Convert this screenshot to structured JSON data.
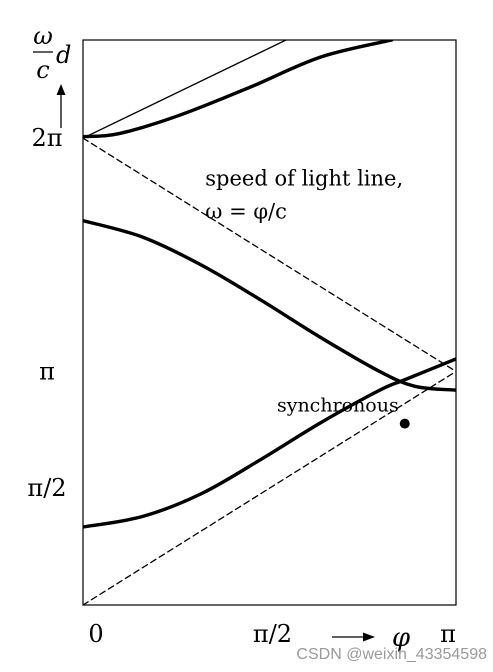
{
  "chart_data": {
    "type": "line",
    "x_range": [
      0,
      3.14159
    ],
    "y_range": [
      0,
      7.6
    ],
    "y_label": {
      "numerator": "ω",
      "denominator": "c",
      "suffix": "d"
    },
    "x_label": "φ",
    "x_ticks": [
      {
        "value": 0,
        "label": "0"
      },
      {
        "value": 1.5708,
        "label": "π/2"
      },
      {
        "value": 3.14159,
        "label": "π"
      }
    ],
    "y_ticks": [
      {
        "value": 1.5708,
        "label": "π/2"
      },
      {
        "value": 3.14159,
        "label": "π"
      },
      {
        "value": 6.2832,
        "label": "2π"
      }
    ],
    "series": [
      {
        "style": "thick",
        "x": [
          0,
          0.5,
          1.0,
          1.5,
          2.0,
          2.5,
          2.71,
          3.14159
        ],
        "y": [
          1.05,
          1.19,
          1.5,
          1.96,
          2.45,
          2.89,
          3.03,
          3.31
        ]
      },
      {
        "style": "thick",
        "x": [
          0,
          0.5,
          1.0,
          1.5,
          2.0,
          2.5,
          2.8,
          3.14159
        ],
        "y": [
          5.17,
          4.95,
          4.57,
          4.1,
          3.6,
          3.14,
          2.94,
          2.89
        ]
      },
      {
        "style": "thick",
        "x": [
          0,
          0.3,
          0.8,
          1.4,
          2.0,
          2.6
        ],
        "y": [
          6.3,
          6.34,
          6.58,
          6.96,
          7.37,
          7.6
        ]
      },
      {
        "style": "thin",
        "x": [
          0,
          1.71
        ],
        "y": [
          6.28,
          7.6
        ]
      },
      {
        "style": "dashed",
        "x": [
          0,
          3.14159
        ],
        "y": [
          6.28,
          3.14159
        ]
      },
      {
        "style": "dashed",
        "x": [
          0,
          3.14159
        ],
        "y": [
          0,
          3.14159
        ]
      }
    ],
    "points": [
      {
        "x": 2.71,
        "y": 2.44,
        "label": "synchronous"
      }
    ],
    "annotations": [
      {
        "text": "speed of light line,",
        "x": 1.03,
        "y": 5.64
      },
      {
        "text": "ω = φ/c",
        "x": 1.03,
        "y": 5.2
      }
    ]
  },
  "watermark": "CSDN @weixin_43354598"
}
